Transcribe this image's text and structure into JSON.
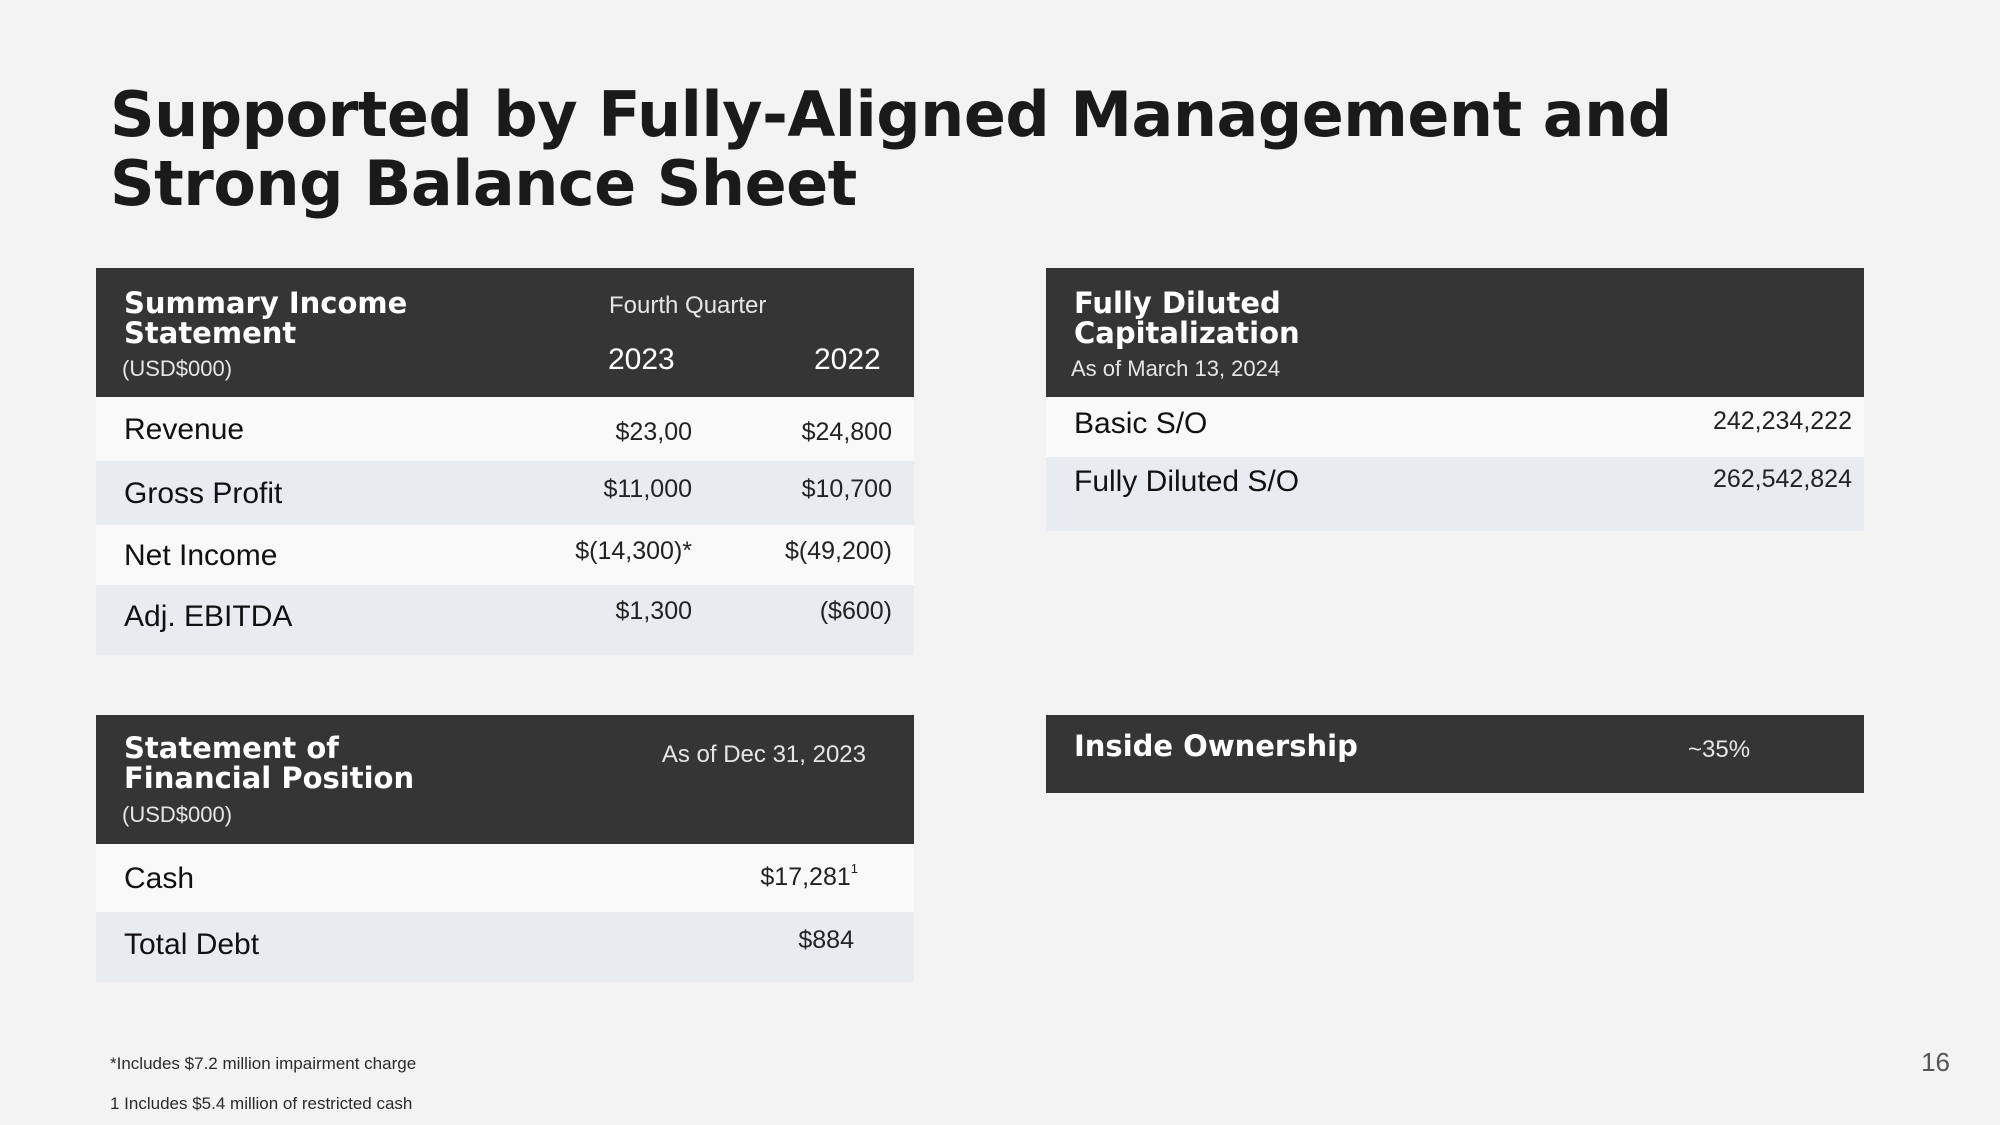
{
  "title": "Supported by Fully-Aligned Management and Strong Balance Sheet",
  "income": {
    "title": "Summary Income\nStatement",
    "unit": "(USD$000)",
    "period": "Fourth Quarter",
    "year1": "2023",
    "year2": "2022",
    "rows": [
      {
        "label": "Revenue",
        "v1": "$23,00",
        "v2": "$24,800"
      },
      {
        "label": "Gross Profit",
        "v1": "$11,000",
        "v2": "$10,700"
      },
      {
        "label": "Net Income",
        "v1": "$(14,300)*",
        "v2": "$(49,200)"
      },
      {
        "label": "Adj. EBITDA",
        "v1": "$1,300",
        "v2": "($600)"
      }
    ]
  },
  "capitalization": {
    "title": "Fully Diluted\nCapitalization",
    "asof": "As of March 13, 2024",
    "rows": [
      {
        "label": "Basic S/O",
        "value": "242,234,222"
      },
      {
        "label": "Fully Diluted S/O",
        "value": "262,542,824"
      }
    ]
  },
  "financial_position": {
    "title": "Statement of\nFinancial Position",
    "unit": "(USD$000)",
    "asof": "As of Dec 31, 2023",
    "rows": [
      {
        "label": "Cash",
        "value": "$17,281",
        "sup": "1"
      },
      {
        "label": "Total Debt",
        "value": "$884",
        "sup": ""
      }
    ]
  },
  "ownership": {
    "label": "Inside Ownership",
    "value": "~35%"
  },
  "footnotes": [
    "*Includes $7.2 million impairment charge",
    "1 Includes $5.4 million of restricted cash"
  ],
  "page_number": "16"
}
